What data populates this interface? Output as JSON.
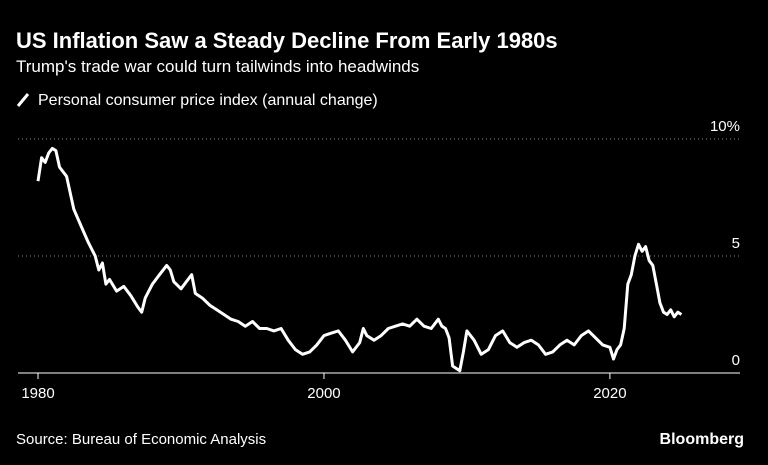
{
  "chart_data": {
    "type": "line",
    "title": "US Inflation Saw a Steady Decline From Early 1980s",
    "subtitle": "Trump's trade war could turn tailwinds into headwinds",
    "source": "Source: Bureau of Economic Analysis",
    "brand": "Bloomberg",
    "x": [
      1980,
      1980.25,
      1980.5,
      1980.75,
      1981,
      1981.25,
      1981.5,
      1982,
      1982.5,
      1983,
      1983.5,
      1984,
      1984.25,
      1984.5,
      1984.75,
      1985,
      1985.5,
      1986,
      1986.5,
      1987,
      1987.25,
      1987.5,
      1988,
      1988.5,
      1989,
      1989.25,
      1989.5,
      1990,
      1990.5,
      1990.75,
      1991,
      1991.5,
      1992,
      1992.5,
      1993,
      1993.5,
      1994,
      1994.5,
      1995,
      1995.5,
      1996,
      1996.5,
      1997,
      1997.5,
      1998,
      1998.5,
      1999,
      1999.5,
      2000,
      2000.5,
      2001,
      2001.5,
      2002,
      2002.5,
      2002.75,
      2003,
      2003.5,
      2004,
      2004.5,
      2005,
      2005.5,
      2006,
      2006.5,
      2007,
      2007.5,
      2008,
      2008.25,
      2008.5,
      2008.75,
      2009,
      2009.5,
      2009.75,
      2010,
      2010.5,
      2011,
      2011.5,
      2012,
      2012.5,
      2013,
      2013.5,
      2014,
      2014.5,
      2015,
      2015.5,
      2016,
      2016.5,
      2017,
      2017.5,
      2018,
      2018.5,
      2019,
      2019.5,
      2020,
      2020.25,
      2020.5,
      2020.75,
      2021,
      2021.25,
      2021.5,
      2021.75,
      2022,
      2022.25,
      2022.5,
      2022.75,
      2023,
      2023.25,
      2023.5,
      2023.75,
      2024,
      2024.25,
      2024.5,
      2024.75,
      2025
    ],
    "series": [
      {
        "name": "Personal consumer price index (annual change)",
        "color": "#ffffff",
        "values": [
          8.2,
          9.2,
          9.0,
          9.4,
          9.6,
          9.5,
          8.8,
          8.4,
          7.0,
          6.3,
          5.6,
          5.0,
          4.4,
          4.7,
          3.8,
          4.0,
          3.5,
          3.7,
          3.3,
          2.8,
          2.6,
          3.2,
          3.8,
          4.2,
          4.6,
          4.4,
          3.9,
          3.6,
          4.0,
          4.2,
          3.4,
          3.2,
          2.9,
          2.7,
          2.5,
          2.3,
          2.2,
          2.0,
          2.2,
          1.9,
          1.9,
          1.8,
          1.9,
          1.4,
          1.0,
          0.8,
          0.9,
          1.2,
          1.6,
          1.7,
          1.8,
          1.4,
          0.9,
          1.3,
          1.9,
          1.6,
          1.4,
          1.6,
          1.9,
          2.0,
          2.1,
          2.0,
          2.3,
          2.0,
          1.9,
          2.3,
          2.0,
          1.9,
          1.5,
          0.3,
          0.1,
          0.9,
          1.8,
          1.4,
          0.8,
          1.0,
          1.6,
          1.8,
          1.3,
          1.1,
          1.3,
          1.4,
          1.2,
          0.8,
          0.9,
          1.2,
          1.4,
          1.2,
          1.6,
          1.8,
          1.5,
          1.2,
          1.1,
          0.6,
          1.0,
          1.2,
          1.9,
          3.8,
          4.2,
          5.0,
          5.5,
          5.2,
          5.4,
          4.8,
          4.6,
          3.8,
          3.0,
          2.6,
          2.5,
          2.7,
          2.4,
          2.6,
          2.5
        ]
      }
    ],
    "xlim": [
      1978.6,
      2029.1
    ],
    "xticks": [
      1980,
      2000,
      2020
    ],
    "ylim": [
      0,
      10
    ],
    "yticks": [
      0,
      5,
      {
        "value": 10,
        "label": "10%"
      }
    ],
    "grid": true
  }
}
